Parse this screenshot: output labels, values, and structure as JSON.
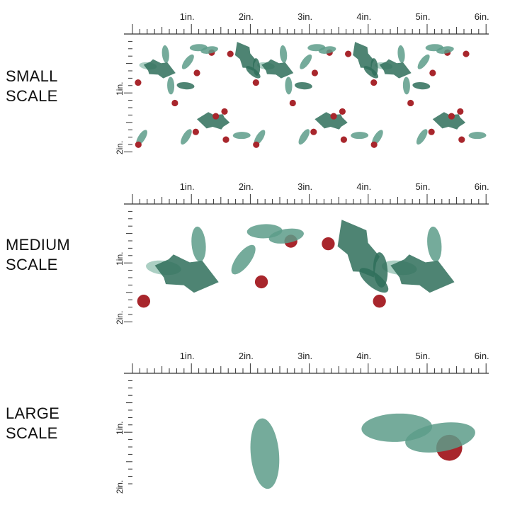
{
  "scales": [
    {
      "label_line1": "SMALL",
      "label_line2": "SCALE",
      "repeat_inches": 2.0
    },
    {
      "label_line1": "MEDIUM",
      "label_line2": "SCALE",
      "repeat_inches": 4.0
    },
    {
      "label_line1": "LARGE",
      "label_line2": "SCALE",
      "repeat_inches": 8.0
    }
  ],
  "ruler": {
    "horizontal_labels": [
      "1in.",
      "2in.",
      "3in.",
      "4in.",
      "5in.",
      "6in."
    ],
    "vertical_labels": [
      "1in.",
      "2in."
    ]
  },
  "colors": {
    "leaf_dark": "#2f6e5a",
    "leaf_mid": "#5d9c89",
    "leaf_light": "#9cc7b8",
    "berry": "#a8262c",
    "ruler": "#333333"
  }
}
